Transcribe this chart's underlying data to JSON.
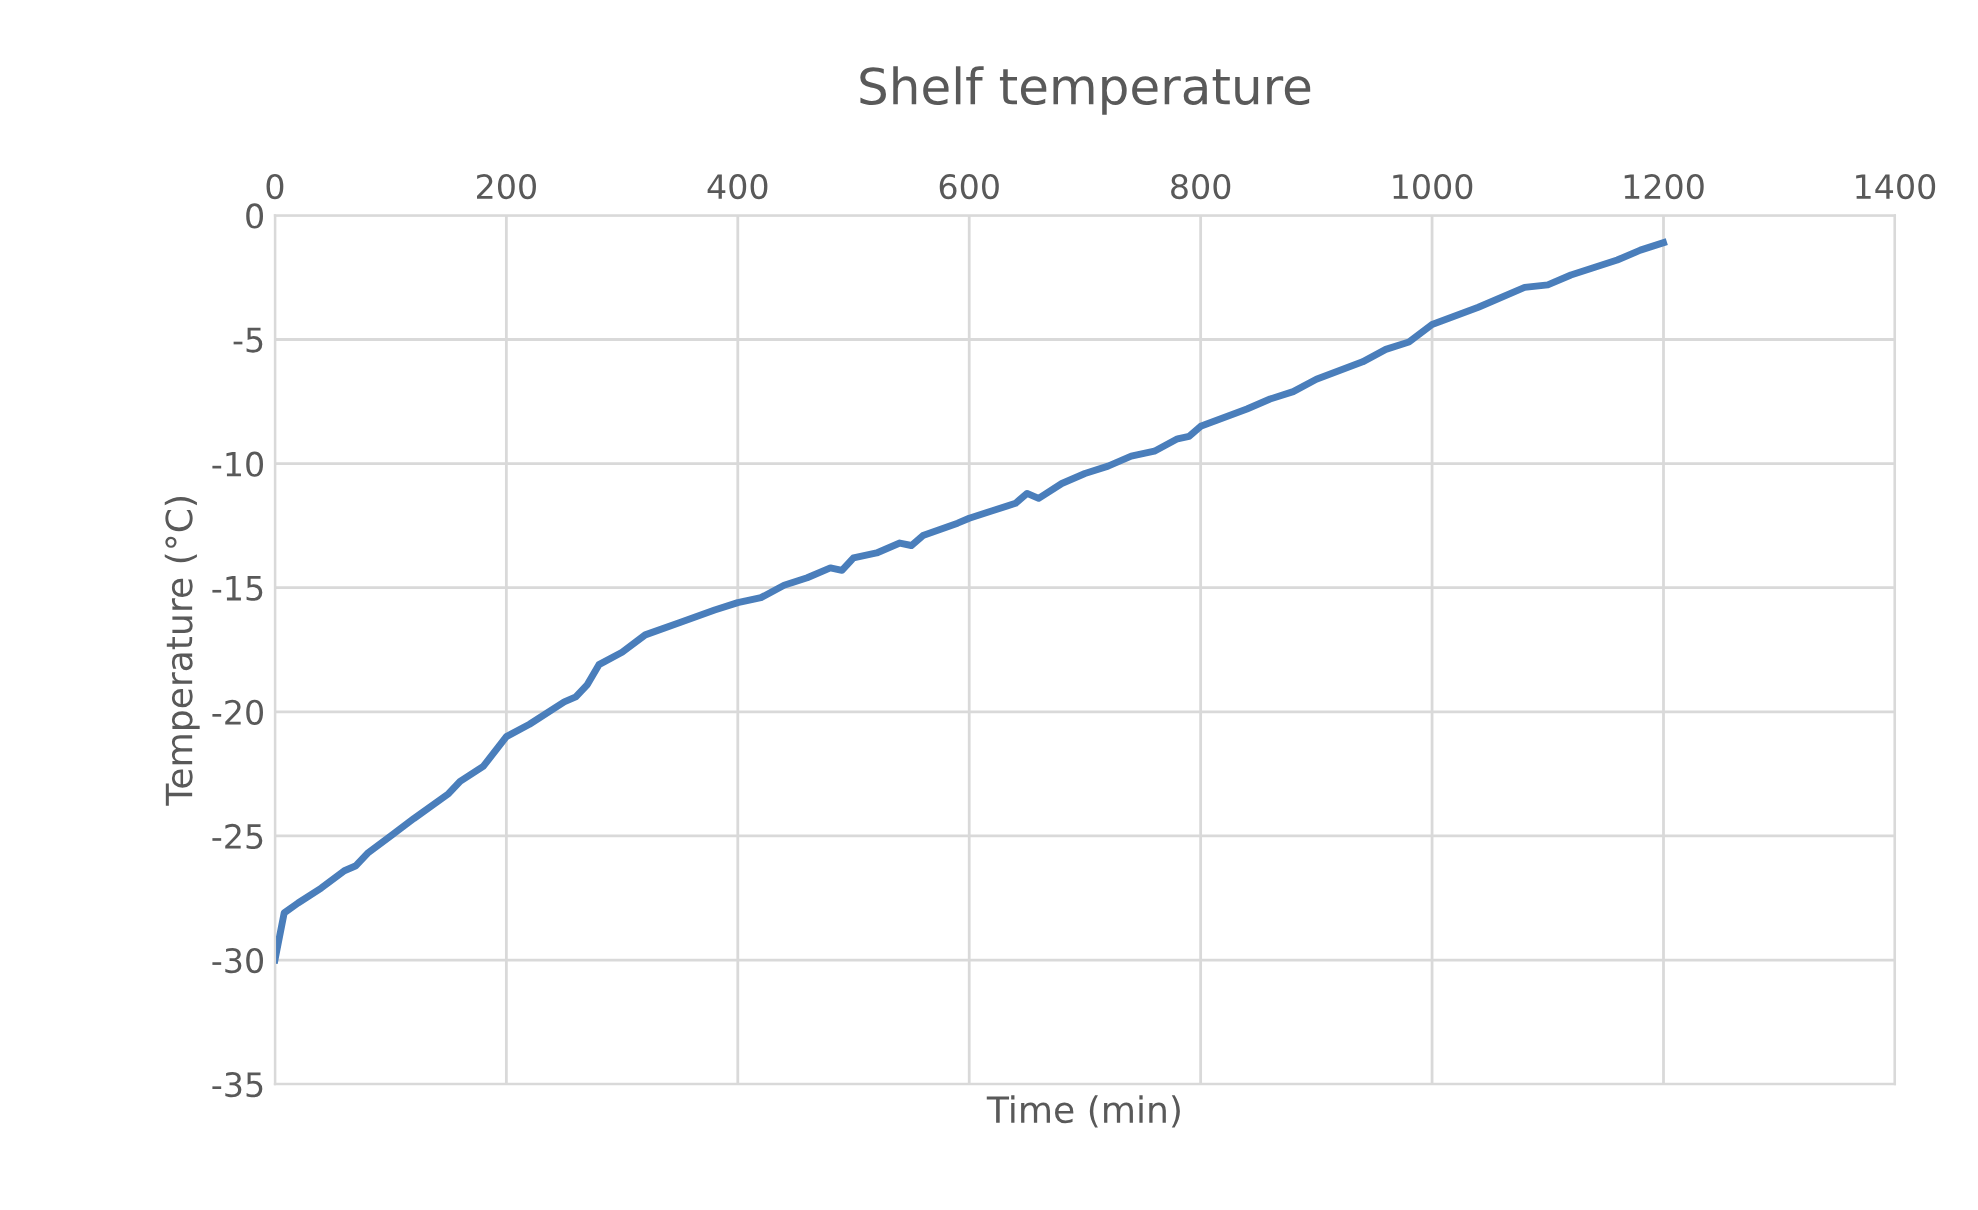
{
  "chart_data": {
    "type": "line",
    "title": "Shelf temperature",
    "xlabel": "Time (min)",
    "ylabel": "Temperature (°C)",
    "xlim": [
      0,
      1400
    ],
    "xticks": [
      0,
      200,
      400,
      600,
      800,
      1000,
      1200,
      1400
    ],
    "ylim": [
      -35,
      0
    ],
    "yticks": [
      -35,
      -30,
      -25,
      -20,
      -15,
      -10,
      -5,
      0
    ],
    "grid": true,
    "legend": false,
    "series": [
      {
        "color": "#4a7ebb",
        "x": [
          0,
          8,
          20,
          40,
          60,
          70,
          80,
          100,
          120,
          150,
          160,
          180,
          200,
          220,
          250,
          260,
          270,
          280,
          300,
          320,
          350,
          380,
          400,
          420,
          440,
          460,
          480,
          490,
          500,
          520,
          540,
          550,
          560,
          590,
          600,
          620,
          640,
          650,
          660,
          680,
          700,
          720,
          740,
          760,
          780,
          790,
          800,
          840,
          860,
          880,
          900,
          940,
          960,
          980,
          1000,
          1040,
          1080,
          1100,
          1120,
          1140,
          1160,
          1180,
          1200
        ],
        "values": [
          -30,
          -28.1,
          -27.7,
          -27.1,
          -26.4,
          -26.2,
          -25.7,
          -25.0,
          -24.3,
          -23.3,
          -22.8,
          -22.2,
          -21.0,
          -20.5,
          -19.6,
          -19.4,
          -18.9,
          -18.1,
          -17.6,
          -16.9,
          -16.4,
          -15.9,
          -15.6,
          -15.4,
          -14.9,
          -14.6,
          -14.2,
          -14.3,
          -13.8,
          -13.6,
          -13.2,
          -13.3,
          -12.9,
          -12.4,
          -12.2,
          -11.9,
          -11.6,
          -11.2,
          -11.4,
          -10.8,
          -10.4,
          -10.1,
          -9.7,
          -9.5,
          -9.0,
          -8.9,
          -8.5,
          -7.8,
          -7.4,
          -7.1,
          -6.6,
          -5.9,
          -5.4,
          -5.1,
          -4.4,
          -3.7,
          -2.9,
          -2.8,
          -2.4,
          -2.1,
          -1.8,
          -1.4,
          -1.1
        ]
      }
    ]
  }
}
